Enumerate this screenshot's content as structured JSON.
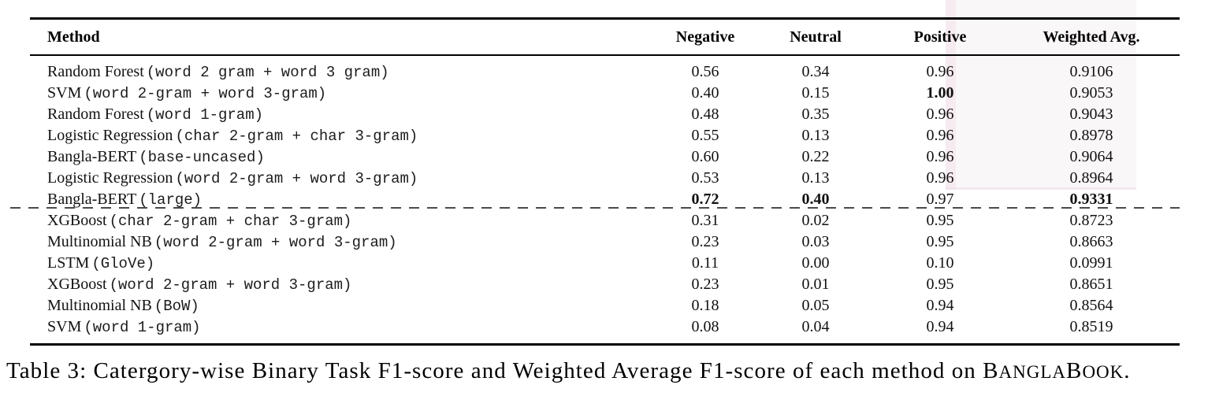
{
  "table": {
    "headers": {
      "method": "Method",
      "negative": "Negative",
      "neutral": "Neutral",
      "positive": "Positive",
      "weighted": "Weighted Avg."
    },
    "rows": [
      {
        "method": "Random Forest",
        "feature": "(word 2 gram + word 3 gram)",
        "values": [
          "0.56",
          "0.34",
          "0.96",
          "0.9106"
        ],
        "bold": [
          false,
          false,
          false,
          false
        ]
      },
      {
        "method": "SVM",
        "feature": "(word 2-gram + word 3-gram)",
        "values": [
          "0.40",
          "0.15",
          "1.00",
          "0.9053"
        ],
        "bold": [
          false,
          false,
          true,
          false
        ]
      },
      {
        "method": "Random Forest",
        "feature": "(word 1-gram)",
        "values": [
          "0.48",
          "0.35",
          "0.96",
          "0.9043"
        ],
        "bold": [
          false,
          false,
          false,
          false
        ]
      },
      {
        "method": "Logistic Regression",
        "feature": "(char 2-gram + char 3-gram)",
        "values": [
          "0.55",
          "0.13",
          "0.96",
          "0.8978"
        ],
        "bold": [
          false,
          false,
          false,
          false
        ]
      },
      {
        "method": "Bangla-BERT",
        "feature": "(base-uncased)",
        "values": [
          "0.60",
          "0.22",
          "0.96",
          "0.9064"
        ],
        "bold": [
          false,
          false,
          false,
          false
        ]
      },
      {
        "method": "Logistic Regression",
        "feature": "(word 2-gram + word 3-gram)",
        "values": [
          "0.53",
          "0.13",
          "0.96",
          "0.8964"
        ],
        "bold": [
          false,
          false,
          false,
          false
        ]
      },
      {
        "method": "Bangla-BERT",
        "feature": "(large)",
        "values": [
          "0.72",
          "0.40",
          "0.97",
          "0.9331"
        ],
        "bold": [
          true,
          true,
          false,
          true
        ]
      },
      {
        "method": "XGBoost",
        "feature": "(char 2-gram + char 3-gram)",
        "values": [
          "0.31",
          "0.02",
          "0.95",
          "0.8723"
        ],
        "bold": [
          false,
          false,
          false,
          false
        ]
      },
      {
        "method": "Multinomial NB",
        "feature": "(word 2-gram + word 3-gram)",
        "values": [
          "0.23",
          "0.03",
          "0.95",
          "0.8663"
        ],
        "bold": [
          false,
          false,
          false,
          false
        ]
      },
      {
        "method": "LSTM",
        "feature": "(GloVe)",
        "values": [
          "0.11",
          "0.00",
          "0.10",
          "0.0991"
        ],
        "bold": [
          false,
          false,
          false,
          false
        ]
      },
      {
        "method": "XGBoost",
        "feature": "(word 2-gram + word 3-gram)",
        "values": [
          "0.23",
          "0.01",
          "0.95",
          "0.8651"
        ],
        "bold": [
          false,
          false,
          false,
          false
        ]
      },
      {
        "method": "Multinomial NB",
        "feature": "(BoW)",
        "values": [
          "0.18",
          "0.05",
          "0.94",
          "0.8564"
        ],
        "bold": [
          false,
          false,
          false,
          false
        ]
      },
      {
        "method": "SVM",
        "feature": "(word 1-gram)",
        "values": [
          "0.08",
          "0.04",
          "0.94",
          "0.8519"
        ],
        "bold": [
          false,
          false,
          false,
          false
        ]
      }
    ],
    "dashed_divider_after_row": 7
  },
  "caption": {
    "prefix": "Table 3: Catergory-wise Binary Task F1-score and Weighted Average F1-score of each method on ",
    "dataset_b1": "B",
    "dataset_sc1": "ANGLA",
    "dataset_b2": "B",
    "dataset_sc2": "OOK",
    "suffix": "."
  },
  "colors": {
    "rule": "#000000",
    "text": "#111111",
    "dash": "#4a4a4a",
    "highlight_artifact": "#f2e1e9"
  }
}
